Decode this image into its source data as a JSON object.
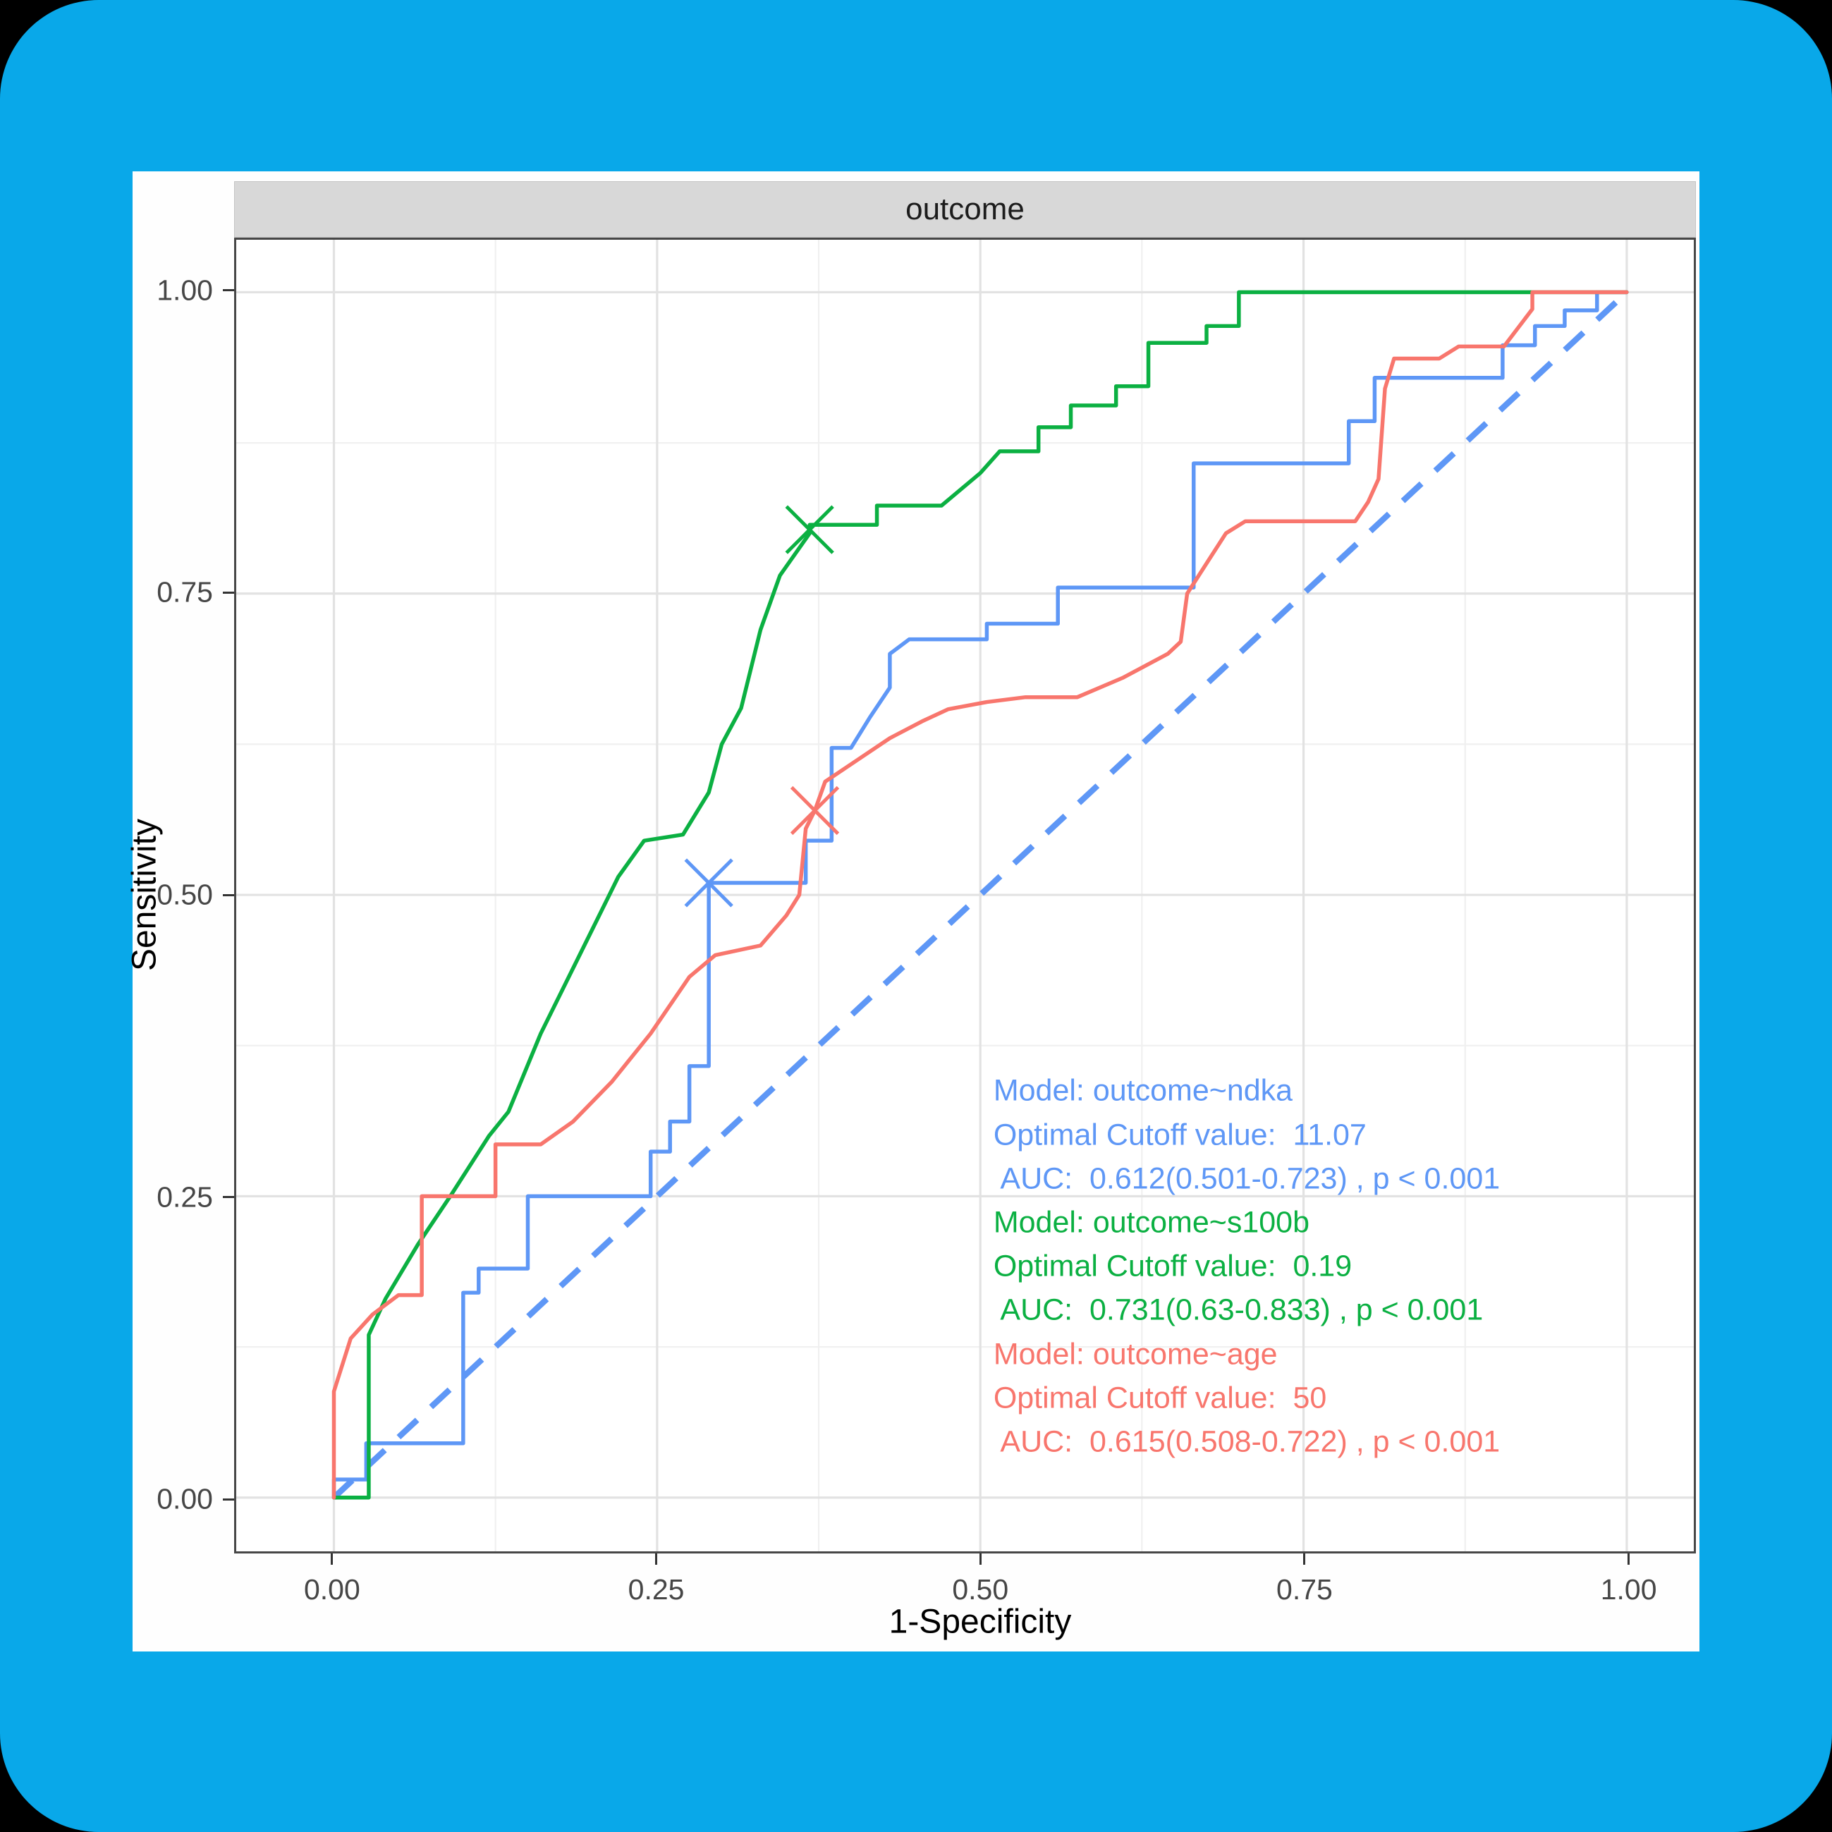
{
  "frame": {
    "border_color": "#09a8e9",
    "background_color": "#000000",
    "card_color": "#fefefe"
  },
  "chart": {
    "facet_title": "outcome",
    "xlabel": "1-Specificity",
    "ylabel": "Sensitivity"
  },
  "chart_data": {
    "type": "line",
    "subtype": "roc-curves",
    "title": "outcome",
    "xlabel": "1-Specificity",
    "ylabel": "Sensitivity",
    "xlim": [
      0,
      1
    ],
    "ylim": [
      0,
      1
    ],
    "grid": {
      "major_positions": [
        0,
        0.25,
        0.5,
        0.75,
        1.0
      ],
      "minor_positions": [
        0.125,
        0.375,
        0.625,
        0.875
      ],
      "major_color": "#e2e2e2",
      "minor_color": "#f0f0f0"
    },
    "x_ticks": [
      {
        "v": 0.0,
        "label": "0.00"
      },
      {
        "v": 0.25,
        "label": "0.25"
      },
      {
        "v": 0.5,
        "label": "0.50"
      },
      {
        "v": 0.75,
        "label": "0.75"
      },
      {
        "v": 1.0,
        "label": "1.00"
      }
    ],
    "y_ticks": [
      {
        "v": 0.0,
        "label": "0.00"
      },
      {
        "v": 0.25,
        "label": "0.25"
      },
      {
        "v": 0.5,
        "label": "0.50"
      },
      {
        "v": 0.75,
        "label": "0.75"
      },
      {
        "v": 1.0,
        "label": "1.00"
      }
    ],
    "reference_line": {
      "from": [
        0,
        0
      ],
      "to": [
        1,
        1
      ],
      "color": "#5e97f6",
      "dashed": true
    },
    "series": [
      {
        "name": "ndka",
        "model": "outcome~ndka",
        "color": "#5e97f6",
        "optimal_cutoff": "11.07",
        "auc": "0.612(0.501-0.723)",
        "p": "p < 0.001",
        "cutoff_marker": {
          "x": 0.29,
          "y": 0.51
        },
        "points": [
          [
            0,
            0
          ],
          [
            0,
            0.015
          ],
          [
            0.025,
            0.015
          ],
          [
            0.025,
            0.045
          ],
          [
            0.1,
            0.045
          ],
          [
            0.1,
            0.17
          ],
          [
            0.112,
            0.17
          ],
          [
            0.112,
            0.19
          ],
          [
            0.15,
            0.19
          ],
          [
            0.15,
            0.25
          ],
          [
            0.245,
            0.25
          ],
          [
            0.245,
            0.287
          ],
          [
            0.26,
            0.287
          ],
          [
            0.26,
            0.312
          ],
          [
            0.275,
            0.312
          ],
          [
            0.275,
            0.358
          ],
          [
            0.29,
            0.358
          ],
          [
            0.29,
            0.51
          ],
          [
            0.365,
            0.51
          ],
          [
            0.365,
            0.545
          ],
          [
            0.385,
            0.545
          ],
          [
            0.385,
            0.622
          ],
          [
            0.4,
            0.622
          ],
          [
            0.415,
            0.648
          ],
          [
            0.43,
            0.672
          ],
          [
            0.43,
            0.7
          ],
          [
            0.445,
            0.712
          ],
          [
            0.505,
            0.712
          ],
          [
            0.505,
            0.725
          ],
          [
            0.56,
            0.725
          ],
          [
            0.56,
            0.755
          ],
          [
            0.665,
            0.755
          ],
          [
            0.665,
            0.858
          ],
          [
            0.785,
            0.858
          ],
          [
            0.785,
            0.893
          ],
          [
            0.805,
            0.893
          ],
          [
            0.805,
            0.929
          ],
          [
            0.904,
            0.929
          ],
          [
            0.904,
            0.956
          ],
          [
            0.929,
            0.956
          ],
          [
            0.929,
            0.972
          ],
          [
            0.952,
            0.972
          ],
          [
            0.952,
            0.985
          ],
          [
            0.977,
            0.985
          ],
          [
            0.977,
            1.0
          ],
          [
            1.0,
            1.0
          ]
        ]
      },
      {
        "name": "s100b",
        "model": "outcome~s100b",
        "color": "#0bb042",
        "optimal_cutoff": "0.19",
        "auc": "0.731(0.63-0.833)",
        "p": "p < 0.001",
        "cutoff_marker": {
          "x": 0.368,
          "y": 0.803
        },
        "points": [
          [
            0,
            0
          ],
          [
            0.027,
            0
          ],
          [
            0.027,
            0.135
          ],
          [
            0.04,
            0.165
          ],
          [
            0.065,
            0.21
          ],
          [
            0.09,
            0.25
          ],
          [
            0.12,
            0.3
          ],
          [
            0.135,
            0.32
          ],
          [
            0.16,
            0.385
          ],
          [
            0.19,
            0.45
          ],
          [
            0.22,
            0.515
          ],
          [
            0.24,
            0.545
          ],
          [
            0.27,
            0.55
          ],
          [
            0.29,
            0.585
          ],
          [
            0.3,
            0.625
          ],
          [
            0.315,
            0.655
          ],
          [
            0.33,
            0.72
          ],
          [
            0.345,
            0.765
          ],
          [
            0.368,
            0.8
          ],
          [
            0.368,
            0.807
          ],
          [
            0.42,
            0.807
          ],
          [
            0.42,
            0.823
          ],
          [
            0.47,
            0.823
          ],
          [
            0.5,
            0.85
          ],
          [
            0.515,
            0.868
          ],
          [
            0.545,
            0.868
          ],
          [
            0.545,
            0.888
          ],
          [
            0.57,
            0.888
          ],
          [
            0.57,
            0.906
          ],
          [
            0.605,
            0.906
          ],
          [
            0.605,
            0.922
          ],
          [
            0.63,
            0.922
          ],
          [
            0.63,
            0.958
          ],
          [
            0.675,
            0.958
          ],
          [
            0.675,
            0.972
          ],
          [
            0.7,
            0.972
          ],
          [
            0.7,
            1.0
          ],
          [
            1.0,
            1.0
          ]
        ]
      },
      {
        "name": "age",
        "model": "outcome~age",
        "color": "#f8766d",
        "optimal_cutoff": "50",
        "auc": "0.615(0.508-0.722)",
        "p": "p < 0.001",
        "cutoff_marker": {
          "x": 0.372,
          "y": 0.57
        },
        "points": [
          [
            0,
            0
          ],
          [
            0,
            0.088
          ],
          [
            0.013,
            0.132
          ],
          [
            0.03,
            0.152
          ],
          [
            0.05,
            0.168
          ],
          [
            0.068,
            0.168
          ],
          [
            0.068,
            0.25
          ],
          [
            0.125,
            0.25
          ],
          [
            0.125,
            0.293
          ],
          [
            0.16,
            0.293
          ],
          [
            0.185,
            0.312
          ],
          [
            0.215,
            0.345
          ],
          [
            0.245,
            0.385
          ],
          [
            0.275,
            0.432
          ],
          [
            0.295,
            0.45
          ],
          [
            0.33,
            0.458
          ],
          [
            0.35,
            0.483
          ],
          [
            0.36,
            0.5
          ],
          [
            0.365,
            0.555
          ],
          [
            0.372,
            0.57
          ],
          [
            0.38,
            0.594
          ],
          [
            0.405,
            0.612
          ],
          [
            0.43,
            0.63
          ],
          [
            0.455,
            0.644
          ],
          [
            0.475,
            0.654
          ],
          [
            0.505,
            0.66
          ],
          [
            0.535,
            0.664
          ],
          [
            0.575,
            0.664
          ],
          [
            0.61,
            0.68
          ],
          [
            0.645,
            0.7
          ],
          [
            0.655,
            0.71
          ],
          [
            0.66,
            0.75
          ],
          [
            0.675,
            0.775
          ],
          [
            0.69,
            0.8
          ],
          [
            0.705,
            0.81
          ],
          [
            0.79,
            0.81
          ],
          [
            0.8,
            0.826
          ],
          [
            0.808,
            0.845
          ],
          [
            0.813,
            0.92
          ],
          [
            0.82,
            0.945
          ],
          [
            0.855,
            0.945
          ],
          [
            0.87,
            0.955
          ],
          [
            0.905,
            0.955
          ],
          [
            0.927,
            0.986
          ],
          [
            0.927,
            1.0
          ],
          [
            1.0,
            1.0
          ]
        ]
      }
    ],
    "annotations": [
      {
        "text": "Model: outcome~ndka",
        "color": "#5e97f6"
      },
      {
        "text": "Optimal Cutoff value:  11.07",
        "color": "#5e97f6"
      },
      {
        "text": " AUC:  0.612(0.501-0.723) , p < 0.001",
        "color": "#5e97f6"
      },
      {
        "text": "Model: outcome~s100b",
        "color": "#0bb042"
      },
      {
        "text": "Optimal Cutoff value:  0.19",
        "color": "#0bb042"
      },
      {
        "text": " AUC:  0.731(0.63-0.833) , p < 0.001",
        "color": "#0bb042"
      },
      {
        "text": "Model: outcome~age",
        "color": "#f8766d"
      },
      {
        "text": "Optimal Cutoff value:  50",
        "color": "#f8766d"
      },
      {
        "text": " AUC:  0.615(0.508-0.722) , p < 0.001",
        "color": "#f8766d"
      }
    ],
    "annotation_anchor": {
      "x_frac": 0.518,
      "y_frac_start": 0.647,
      "line_step_frac": 0.03335
    },
    "legend_position": "none"
  }
}
